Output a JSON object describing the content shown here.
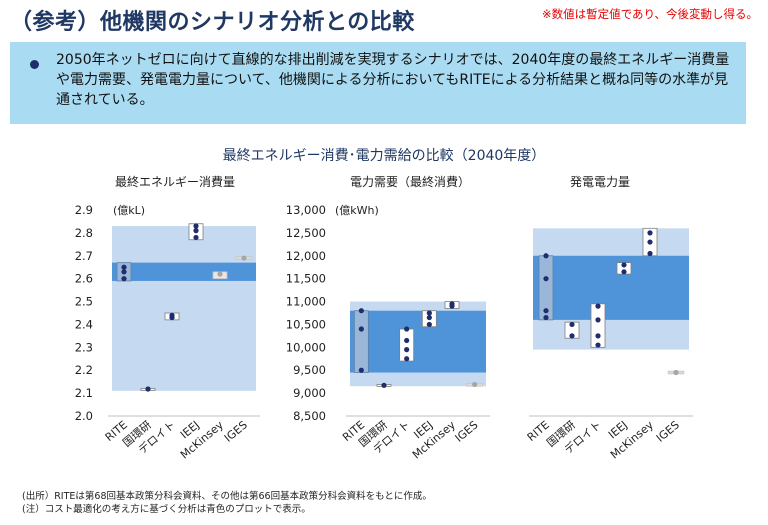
{
  "title": "（参考）他機関のシナリオ分析との比較",
  "note": "※数値は暫定値であり、今後変動し得る。",
  "summary": "2050年ネットゼロに向けて直線的な排出削減を実現するシナリオでは、2040年度の最終エネルギー消費量や電力需要、発電電力量について、他機関による分析においてもRITEによる分析結果と概ね同等の水準が見通されている。",
  "chart_heading": "最終エネルギー消費･電力需給の比較（2040年度）",
  "source_line": "(出所）RITEは第68回基本政策分科会資料、その他は第66回基本政策分科会資料をもとに作成。",
  "footnote": "(注）コスト最適化の考え方に基づく分析は青色のプロットで表示。",
  "colors": {
    "outer_band": "#c5d9f1",
    "inner_band": "#4f94d9",
    "point": "#1f2d6b",
    "point_gray": "#a6a6a6",
    "box_fill": "#ffffff",
    "box_fill_blue": "#9ab7d9",
    "heading": "#1f3864"
  },
  "chart_data": [
    {
      "type": "range",
      "title": "最終エネルギー消費量",
      "unit": "(億kL)",
      "ylim": [
        2.0,
        2.9
      ],
      "yticks": [
        "2.0",
        "2.1",
        "2.2",
        "2.3",
        "2.4",
        "2.5",
        "2.6",
        "2.7",
        "2.8",
        "2.9"
      ],
      "outer_band": [
        2.11,
        2.83
      ],
      "inner_band": [
        2.59,
        2.67
      ],
      "categories": [
        "RITE",
        "国環研",
        "デロイト",
        "IEEJ",
        "McKinsey",
        "IGES"
      ],
      "series": [
        {
          "category": "RITE",
          "box": [
            2.59,
            2.67
          ],
          "points": [
            2.6,
            2.63,
            2.65
          ],
          "box_style": "blue"
        },
        {
          "category": "国環研",
          "box": [
            2.115,
            2.12
          ],
          "points": [
            2.118
          ],
          "box_style": "white"
        },
        {
          "category": "デロイト",
          "box": [
            2.42,
            2.45
          ],
          "points": [
            2.43,
            2.44
          ],
          "box_style": "white"
        },
        {
          "category": "IEEJ",
          "box": [
            2.77,
            2.84
          ],
          "points": [
            2.78,
            2.81,
            2.83
          ],
          "box_style": "white"
        },
        {
          "category": "McKinsey",
          "box": [
            2.6,
            2.63
          ],
          "points": [
            2.62
          ],
          "box_style": "gray",
          "point_color": "gray"
        },
        {
          "category": "IGES",
          "box": [
            2.69,
            2.69
          ],
          "points": [
            2.69
          ],
          "box_style": "line",
          "point_color": "gray"
        }
      ]
    },
    {
      "type": "range",
      "title": "電力需要（最終消費）",
      "unit": "(億kWh)",
      "ylim": [
        8500,
        13000
      ],
      "yticks": [
        "8,500",
        "9,000",
        "9,500",
        "10,000",
        "10,500",
        "11,000",
        "11,500",
        "12,000",
        "12,500",
        "13,000"
      ],
      "outer_band": [
        9150,
        11000
      ],
      "inner_band": [
        9450,
        10800
      ],
      "categories": [
        "RITE",
        "国環研",
        "デロイト",
        "IEEJ",
        "McKinsey",
        "IGES"
      ],
      "series": [
        {
          "category": "RITE",
          "box": [
            9450,
            10800
          ],
          "points": [
            9500,
            10400,
            10800
          ],
          "box_style": "blue"
        },
        {
          "category": "国環研",
          "box": [
            9150,
            9190
          ],
          "points": [
            9170
          ],
          "box_style": "white"
        },
        {
          "category": "デロイト",
          "box": [
            9700,
            10400
          ],
          "points": [
            9750,
            9950,
            10150,
            10400
          ],
          "box_style": "white"
        },
        {
          "category": "IEEJ",
          "box": [
            10450,
            10800
          ],
          "points": [
            10500,
            10650,
            10750
          ],
          "box_style": "white"
        },
        {
          "category": "McKinsey",
          "box": [
            10850,
            11000
          ],
          "points": [
            10900,
            10950
          ],
          "box_style": "white"
        },
        {
          "category": "IGES",
          "box": [
            9180,
            9200
          ],
          "points": [
            9190
          ],
          "box_style": "line",
          "point_color": "gray"
        }
      ]
    },
    {
      "type": "range",
      "title": "発電電力量",
      "unit": "",
      "ylim": [
        8500,
        13000
      ],
      "outer_band": [
        9950,
        12600
      ],
      "inner_band": [
        10600,
        12000
      ],
      "categories": [
        "RITE",
        "国環研",
        "デロイト",
        "IEEJ",
        "McKinsey",
        "IGES"
      ],
      "series": [
        {
          "category": "RITE",
          "box": [
            10600,
            12000
          ],
          "points": [
            10650,
            10800,
            11500,
            12000
          ],
          "box_style": "blue"
        },
        {
          "category": "国環研",
          "box": [
            10200,
            10550
          ],
          "points": [
            10250,
            10500
          ],
          "box_style": "white"
        },
        {
          "category": "デロイト",
          "box": [
            10000,
            10950
          ],
          "points": [
            10050,
            10250,
            10600,
            10900
          ],
          "box_style": "white"
        },
        {
          "category": "IEEJ",
          "box": [
            11600,
            11850
          ],
          "points": [
            11650,
            11800
          ],
          "box_style": "white"
        },
        {
          "category": "McKinsey",
          "box": [
            12000,
            12600
          ],
          "points": [
            12050,
            12300,
            12500
          ],
          "box_style": "white"
        },
        {
          "category": "IGES",
          "box": [
            9450,
            9450
          ],
          "points": [
            9450
          ],
          "box_style": "line",
          "point_color": "gray"
        }
      ]
    }
  ]
}
